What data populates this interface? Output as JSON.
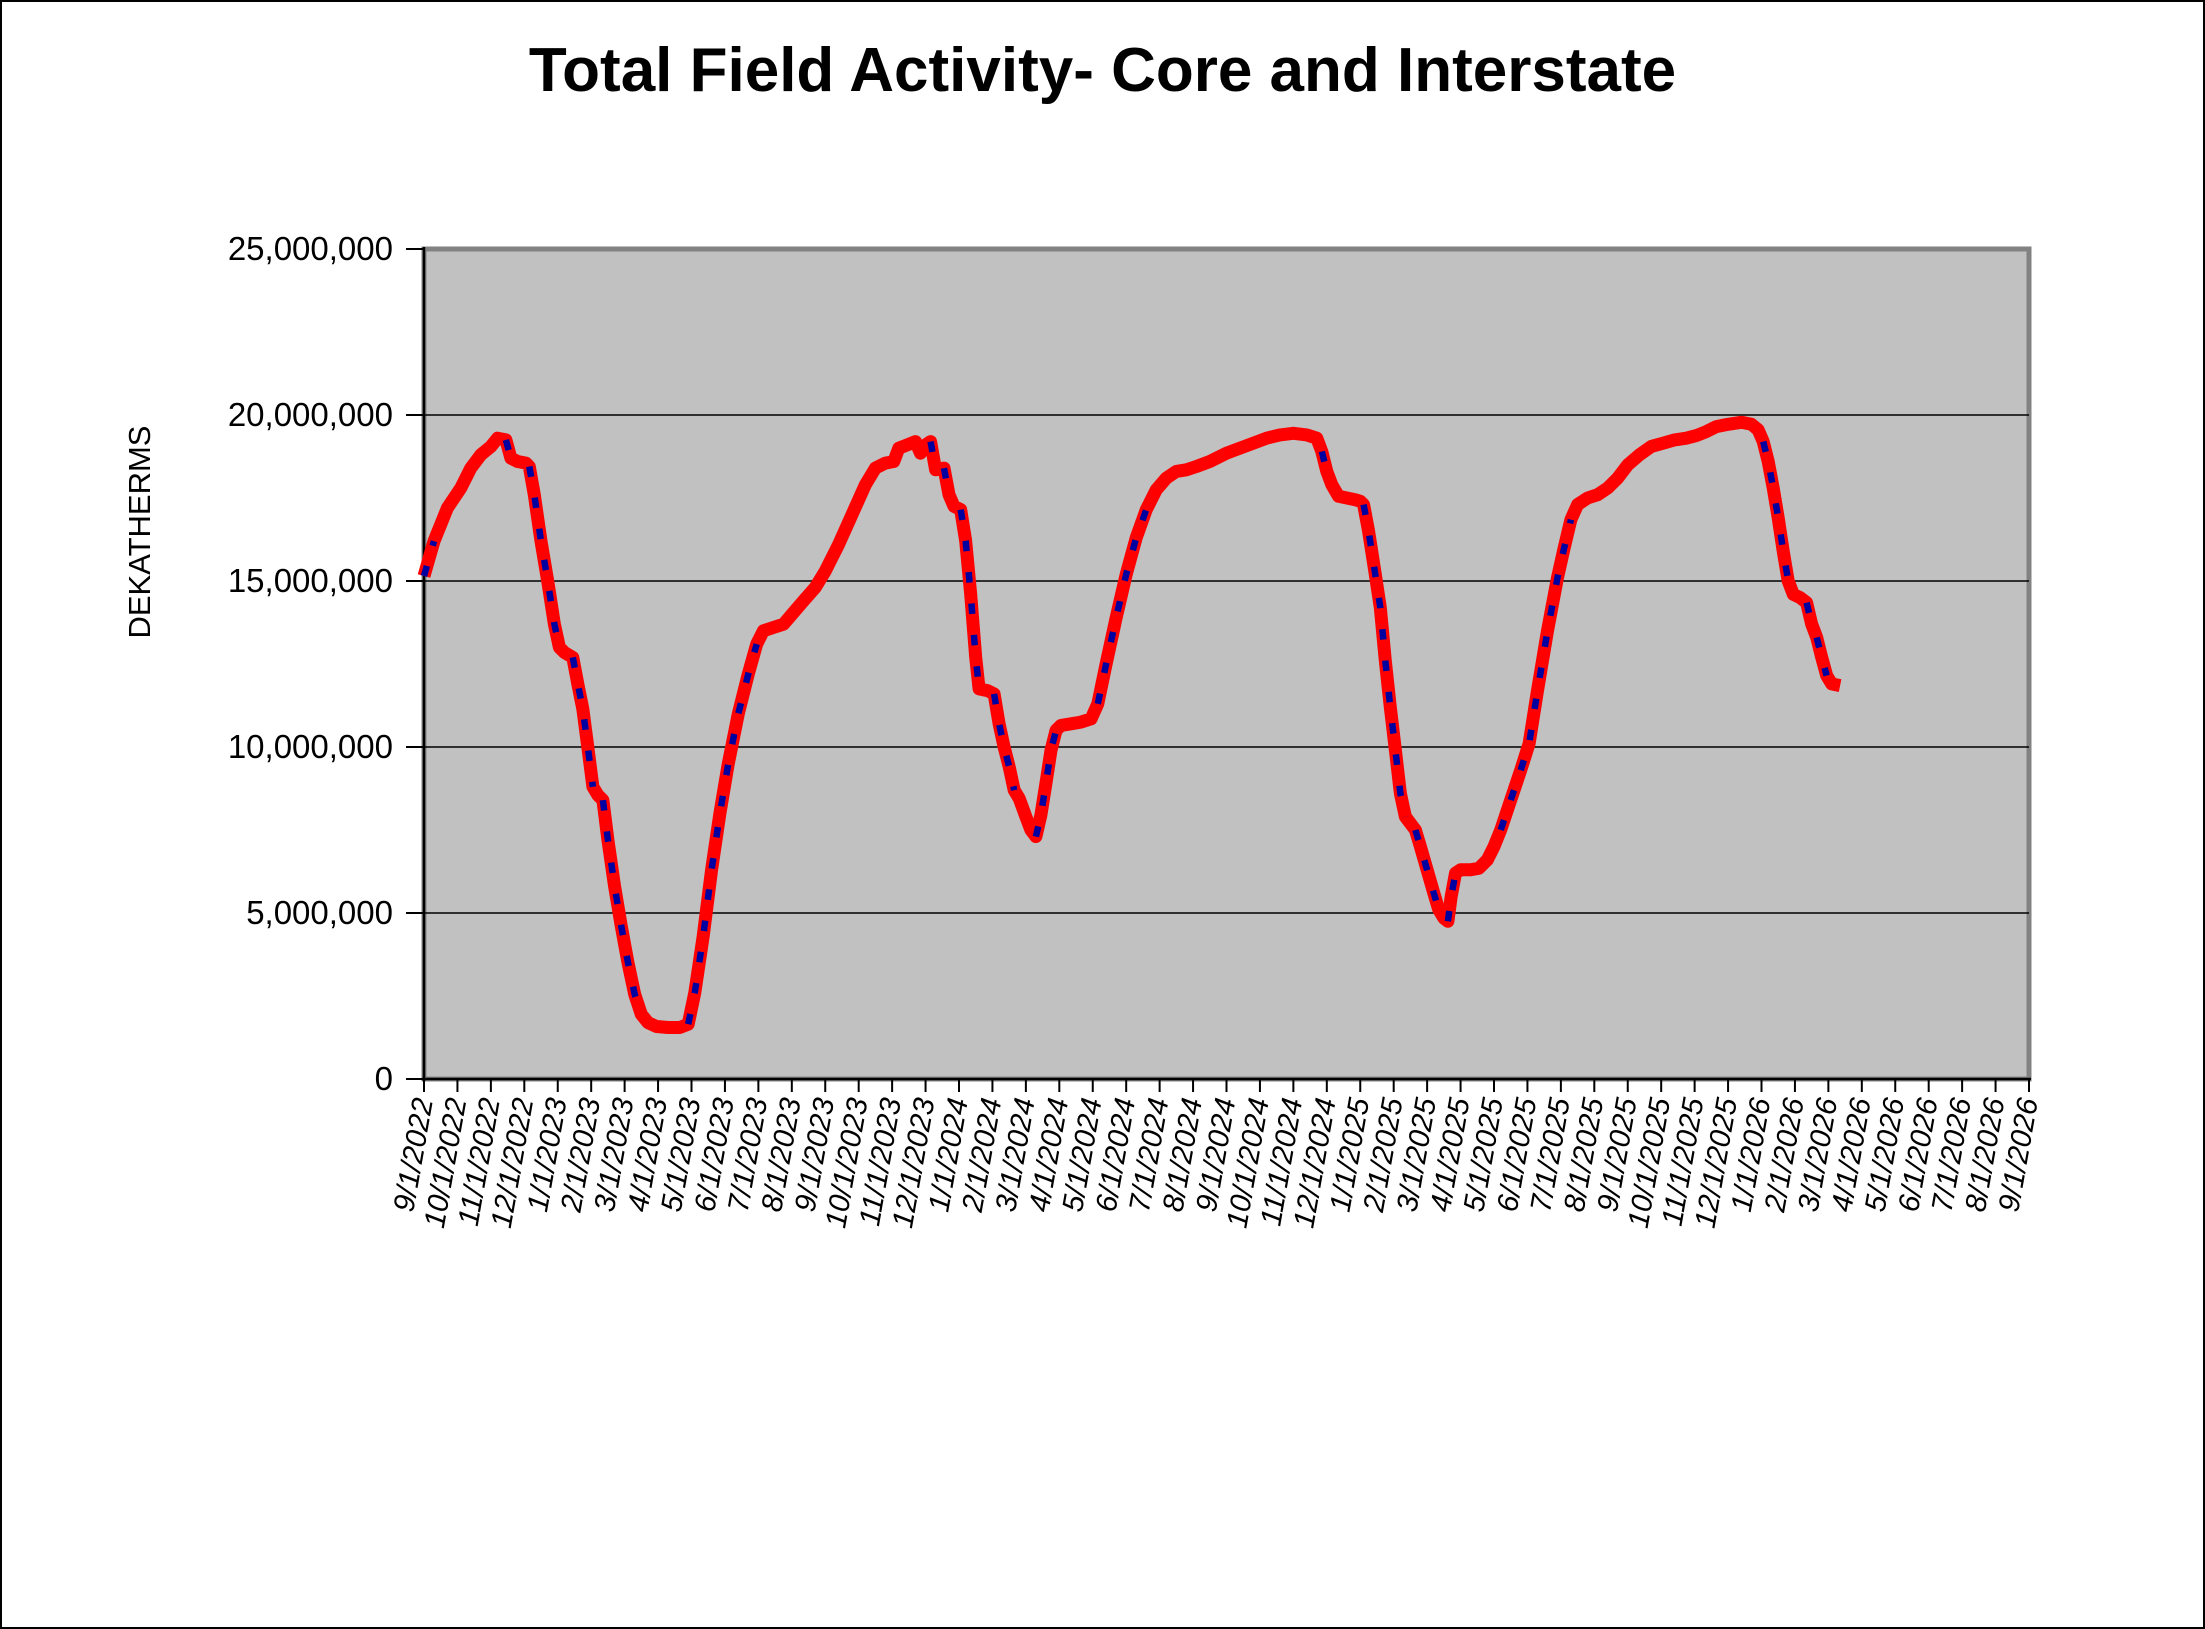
{
  "title": "Total Field Activity- Core and Interstate",
  "chart_data": {
    "type": "line",
    "title": "Total Field Activity- Core and Interstate",
    "xlabel": "",
    "ylabel": "DEKATHERMS",
    "ylim": [
      0,
      25000000
    ],
    "grid": "horizontal",
    "legend": "none",
    "plot_bg_color": "#c1c1c1",
    "plot_border_color": "#828282",
    "y_tick_values_millions": [
      0,
      5,
      10,
      15,
      20,
      25
    ],
    "y_tick_labels": [
      "0",
      "5,000,000",
      "10,000,000",
      "15,000,000",
      "20,000,000",
      "25,000,000"
    ],
    "x_tick_labels": [
      "9/1/2022",
      "10/1/2022",
      "11/1/2022",
      "12/1/2022",
      "1/1/2023",
      "2/1/2023",
      "3/1/2023",
      "4/1/2023",
      "5/1/2023",
      "6/1/2023",
      "7/1/2023",
      "8/1/2023",
      "9/1/2023",
      "10/1/2023",
      "11/1/2023",
      "12/1/2023",
      "1/1/2024",
      "2/1/2024",
      "3/1/2024",
      "4/1/2024",
      "5/1/2024",
      "6/1/2024",
      "7/1/2024",
      "8/1/2024",
      "9/1/2024",
      "10/1/2024",
      "11/1/2024",
      "12/1/2024",
      "1/1/2025",
      "2/1/2025",
      "3/1/2025",
      "4/1/2025",
      "5/1/2025",
      "6/1/2025",
      "7/1/2025",
      "8/1/2025",
      "9/1/2025",
      "10/1/2025",
      "11/1/2025",
      "12/1/2025",
      "1/1/2026",
      "2/1/2026",
      "3/1/2026",
      "4/1/2026",
      "5/1/2026",
      "6/1/2026",
      "7/1/2026",
      "8/1/2026",
      "9/1/2026"
    ],
    "series": [
      {
        "name": "total-field-activity",
        "type": "line",
        "color": "#ff0000",
        "stroke_width": 13,
        "x_unit": "months-from-9/1/2022",
        "value_unit": "million dekatherms",
        "points": [
          [
            0,
            15.15
          ],
          [
            0.3,
            16.2
          ],
          [
            0.7,
            17.2
          ],
          [
            1.1,
            17.8
          ],
          [
            1.4,
            18.4
          ],
          [
            1.7,
            18.8
          ],
          [
            2.0,
            19.05
          ],
          [
            2.2,
            19.3
          ],
          [
            2.45,
            19.25
          ],
          [
            2.6,
            18.7
          ],
          [
            2.8,
            18.6
          ],
          [
            3.05,
            18.55
          ],
          [
            3.15,
            18.45
          ],
          [
            3.3,
            17.6
          ],
          [
            3.5,
            16.2
          ],
          [
            3.7,
            15.0
          ],
          [
            3.9,
            13.7
          ],
          [
            4.05,
            13.0
          ],
          [
            4.2,
            12.85
          ],
          [
            4.45,
            12.7
          ],
          [
            4.6,
            11.9
          ],
          [
            4.75,
            11.15
          ],
          [
            4.9,
            10.0
          ],
          [
            5.05,
            8.8
          ],
          [
            5.2,
            8.55
          ],
          [
            5.35,
            8.4
          ],
          [
            5.5,
            7.2
          ],
          [
            5.7,
            5.8
          ],
          [
            5.9,
            4.6
          ],
          [
            6.1,
            3.5
          ],
          [
            6.3,
            2.55
          ],
          [
            6.5,
            1.95
          ],
          [
            6.7,
            1.7
          ],
          [
            6.95,
            1.58
          ],
          [
            7.3,
            1.55
          ],
          [
            7.65,
            1.55
          ],
          [
            7.9,
            1.65
          ],
          [
            8.1,
            2.6
          ],
          [
            8.35,
            4.3
          ],
          [
            8.6,
            6.3
          ],
          [
            8.85,
            8.0
          ],
          [
            9.1,
            9.5
          ],
          [
            9.4,
            11.0
          ],
          [
            9.7,
            12.2
          ],
          [
            9.95,
            13.1
          ],
          [
            10.15,
            13.5
          ],
          [
            10.45,
            13.6
          ],
          [
            10.75,
            13.7
          ],
          [
            11.05,
            14.05
          ],
          [
            11.35,
            14.4
          ],
          [
            11.7,
            14.8
          ],
          [
            12.0,
            15.3
          ],
          [
            12.4,
            16.1
          ],
          [
            12.8,
            17.0
          ],
          [
            13.2,
            17.9
          ],
          [
            13.5,
            18.4
          ],
          [
            13.8,
            18.55
          ],
          [
            14.05,
            18.6
          ],
          [
            14.2,
            19.0
          ],
          [
            14.45,
            19.1
          ],
          [
            14.7,
            19.2
          ],
          [
            14.85,
            18.85
          ],
          [
            15.0,
            19.1
          ],
          [
            15.15,
            19.2
          ],
          [
            15.3,
            18.35
          ],
          [
            15.55,
            18.4
          ],
          [
            15.7,
            17.6
          ],
          [
            15.85,
            17.25
          ],
          [
            16.05,
            17.15
          ],
          [
            16.2,
            16.2
          ],
          [
            16.35,
            14.6
          ],
          [
            16.5,
            12.7
          ],
          [
            16.6,
            11.75
          ],
          [
            16.85,
            11.7
          ],
          [
            17.05,
            11.6
          ],
          [
            17.2,
            10.7
          ],
          [
            17.35,
            10.0
          ],
          [
            17.5,
            9.4
          ],
          [
            17.65,
            8.7
          ],
          [
            17.8,
            8.45
          ],
          [
            18.0,
            7.9
          ],
          [
            18.15,
            7.5
          ],
          [
            18.3,
            7.3
          ],
          [
            18.45,
            7.95
          ],
          [
            18.6,
            8.9
          ],
          [
            18.75,
            9.9
          ],
          [
            18.9,
            10.5
          ],
          [
            19.05,
            10.65
          ],
          [
            19.35,
            10.7
          ],
          [
            19.65,
            10.75
          ],
          [
            19.95,
            10.85
          ],
          [
            20.15,
            11.3
          ],
          [
            20.4,
            12.5
          ],
          [
            20.7,
            13.9
          ],
          [
            21.0,
            15.2
          ],
          [
            21.3,
            16.3
          ],
          [
            21.6,
            17.15
          ],
          [
            21.9,
            17.75
          ],
          [
            22.2,
            18.1
          ],
          [
            22.5,
            18.3
          ],
          [
            22.8,
            18.35
          ],
          [
            23.1,
            18.45
          ],
          [
            23.5,
            18.6
          ],
          [
            24.0,
            18.85
          ],
          [
            24.4,
            19.0
          ],
          [
            24.8,
            19.15
          ],
          [
            25.2,
            19.3
          ],
          [
            25.6,
            19.4
          ],
          [
            26.0,
            19.45
          ],
          [
            26.4,
            19.4
          ],
          [
            26.7,
            19.3
          ],
          [
            26.85,
            18.9
          ],
          [
            27.0,
            18.3
          ],
          [
            27.15,
            17.9
          ],
          [
            27.35,
            17.55
          ],
          [
            27.6,
            17.5
          ],
          [
            27.85,
            17.45
          ],
          [
            28.0,
            17.4
          ],
          [
            28.1,
            17.3
          ],
          [
            28.25,
            16.5
          ],
          [
            28.45,
            15.2
          ],
          [
            28.6,
            14.2
          ],
          [
            28.75,
            12.6
          ],
          [
            28.9,
            11.2
          ],
          [
            29.05,
            9.9
          ],
          [
            29.2,
            8.6
          ],
          [
            29.35,
            7.9
          ],
          [
            29.5,
            7.7
          ],
          [
            29.65,
            7.5
          ],
          [
            29.8,
            7.0
          ],
          [
            30.0,
            6.3
          ],
          [
            30.2,
            5.6
          ],
          [
            30.35,
            5.1
          ],
          [
            30.5,
            4.85
          ],
          [
            30.62,
            4.75
          ],
          [
            30.72,
            5.5
          ],
          [
            30.85,
            6.2
          ],
          [
            31.0,
            6.3
          ],
          [
            31.3,
            6.3
          ],
          [
            31.55,
            6.35
          ],
          [
            31.8,
            6.6
          ],
          [
            32.0,
            7.0
          ],
          [
            32.2,
            7.5
          ],
          [
            32.5,
            8.4
          ],
          [
            32.8,
            9.3
          ],
          [
            33.05,
            10.1
          ],
          [
            33.3,
            11.7
          ],
          [
            33.6,
            13.5
          ],
          [
            33.9,
            15.1
          ],
          [
            34.1,
            16.0
          ],
          [
            34.3,
            16.85
          ],
          [
            34.5,
            17.3
          ],
          [
            34.8,
            17.5
          ],
          [
            35.1,
            17.6
          ],
          [
            35.4,
            17.8
          ],
          [
            35.7,
            18.1
          ],
          [
            36.0,
            18.5
          ],
          [
            36.35,
            18.8
          ],
          [
            36.7,
            19.05
          ],
          [
            37.05,
            19.15
          ],
          [
            37.4,
            19.25
          ],
          [
            37.75,
            19.3
          ],
          [
            38.05,
            19.38
          ],
          [
            38.35,
            19.5
          ],
          [
            38.65,
            19.65
          ],
          [
            39.0,
            19.72
          ],
          [
            39.4,
            19.78
          ],
          [
            39.7,
            19.72
          ],
          [
            39.9,
            19.55
          ],
          [
            40.05,
            19.2
          ],
          [
            40.2,
            18.6
          ],
          [
            40.35,
            17.8
          ],
          [
            40.5,
            16.9
          ],
          [
            40.65,
            15.9
          ],
          [
            40.8,
            15.0
          ],
          [
            40.95,
            14.6
          ],
          [
            41.15,
            14.5
          ],
          [
            41.35,
            14.35
          ],
          [
            41.5,
            13.7
          ],
          [
            41.65,
            13.3
          ],
          [
            41.8,
            12.7
          ],
          [
            41.95,
            12.15
          ],
          [
            42.1,
            11.9
          ],
          [
            42.35,
            11.85
          ]
        ]
      },
      {
        "name": "overlay-dashed",
        "type": "line",
        "color": "#0000a0",
        "style": "dashed",
        "stroke_width": 6.5,
        "points_ref": "same as total-field-activity; blue dashes show only on steep segments"
      }
    ]
  }
}
